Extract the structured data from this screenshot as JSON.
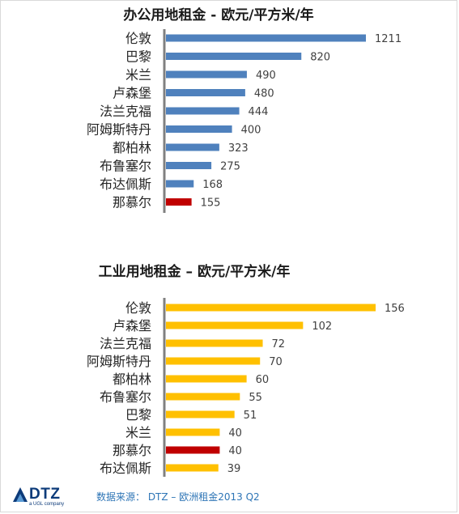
{
  "chart_data": [
    {
      "type": "bar",
      "orientation": "horizontal",
      "title": "办公用地租金 -  欧元/平方米/年",
      "categories": [
        "伦敦",
        "巴黎",
        "米兰",
        "卢森堡",
        "法兰克福",
        "阿姆斯特丹",
        "都柏林",
        "布鲁塞尔",
        "布达佩斯",
        "那慕尔"
      ],
      "values": [
        1211,
        820,
        490,
        480,
        444,
        400,
        323,
        275,
        168,
        155
      ],
      "value_labels": [
        "1211",
        "820",
        "490",
        "480",
        "444",
        "400",
        "323",
        "275",
        "168",
        "155"
      ],
      "colors": [
        "#4f81bd",
        "#4f81bd",
        "#4f81bd",
        "#4f81bd",
        "#4f81bd",
        "#4f81bd",
        "#4f81bd",
        "#4f81bd",
        "#4f81bd",
        "#c00000"
      ],
      "xlim": [
        0,
        1211
      ],
      "grid": false,
      "legend": "none"
    },
    {
      "type": "bar",
      "orientation": "horizontal",
      "title": "工业用地租金 – 欧元/平方米/年",
      "categories": [
        "伦敦",
        "卢森堡",
        "法兰克福",
        "阿姆斯特丹",
        "都柏林",
        "布鲁塞尔",
        "巴黎",
        "米兰",
        "那慕尔",
        "布达佩斯"
      ],
      "values": [
        156,
        102,
        72,
        70,
        60,
        55,
        51,
        40,
        40,
        39
      ],
      "value_labels": [
        "156",
        "102",
        "72",
        "70",
        "60",
        "55",
        "51",
        "40",
        "40",
        "39"
      ],
      "colors": [
        "#ffc000",
        "#ffc000",
        "#ffc000",
        "#ffc000",
        "#ffc000",
        "#ffc000",
        "#ffc000",
        "#ffc000",
        "#c00000",
        "#ffc000"
      ],
      "xlim": [
        0,
        156
      ],
      "grid": false,
      "legend": "none"
    }
  ],
  "footer": {
    "logo_text": "DTZ",
    "logo_sub": "a UGL company",
    "source": "数据来源： DTZ – 欧洲租金2013 Q2"
  },
  "colors": {
    "axis": "#808080",
    "source_text": "#2e75b6",
    "logo": "#0d3b7a"
  }
}
